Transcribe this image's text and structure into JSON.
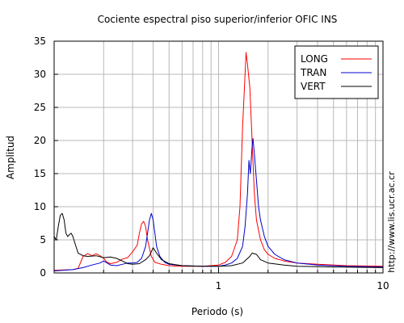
{
  "chart_data": {
    "type": "line",
    "title": "Cociente espectral piso superior/inferior  OFIC INS",
    "xlabel": "Periodo (s)",
    "ylabel": "Amplitud",
    "x_scale": "log",
    "xlim": [
      0.1,
      10
    ],
    "ylim": [
      0,
      35
    ],
    "x_tick_labels": [
      {
        "value": 1,
        "label": "1"
      },
      {
        "value": 10,
        "label": "10"
      }
    ],
    "y_ticks": [
      0,
      5,
      10,
      15,
      20,
      25,
      30,
      35
    ],
    "grid": true,
    "legend_position": "top-right",
    "side_text": "http://www.lis.ucr.ac.cr",
    "series": [
      {
        "name": "LONG",
        "color": "#ff0000",
        "points": [
          [
            0.1,
            0.4
          ],
          [
            0.13,
            0.5
          ],
          [
            0.14,
            0.7
          ],
          [
            0.15,
            2.5
          ],
          [
            0.16,
            2.9
          ],
          [
            0.17,
            2.6
          ],
          [
            0.18,
            2.9
          ],
          [
            0.19,
            2.6
          ],
          [
            0.2,
            2.2
          ],
          [
            0.21,
            1.6
          ],
          [
            0.22,
            1.4
          ],
          [
            0.24,
            1.6
          ],
          [
            0.26,
            2.1
          ],
          [
            0.28,
            2.3
          ],
          [
            0.3,
            3.2
          ],
          [
            0.32,
            4.2
          ],
          [
            0.33,
            6.0
          ],
          [
            0.34,
            7.4
          ],
          [
            0.35,
            7.8
          ],
          [
            0.36,
            7.0
          ],
          [
            0.37,
            5.0
          ],
          [
            0.39,
            2.5
          ],
          [
            0.41,
            1.6
          ],
          [
            0.45,
            1.3
          ],
          [
            0.5,
            1.1
          ],
          [
            0.6,
            1.0
          ],
          [
            0.8,
            1.0
          ],
          [
            1.0,
            1.2
          ],
          [
            1.1,
            1.6
          ],
          [
            1.2,
            2.5
          ],
          [
            1.3,
            5.0
          ],
          [
            1.35,
            10.0
          ],
          [
            1.4,
            22.0
          ],
          [
            1.45,
            30.0
          ],
          [
            1.47,
            33.3
          ],
          [
            1.5,
            31.5
          ],
          [
            1.55,
            28.0
          ],
          [
            1.6,
            20.0
          ],
          [
            1.65,
            12.0
          ],
          [
            1.7,
            8.0
          ],
          [
            1.8,
            5.0
          ],
          [
            1.9,
            3.5
          ],
          [
            2.0,
            2.8
          ],
          [
            2.2,
            2.2
          ],
          [
            2.5,
            1.8
          ],
          [
            3.0,
            1.5
          ],
          [
            4.0,
            1.3
          ],
          [
            6.0,
            1.1
          ],
          [
            10.0,
            1.0
          ]
        ]
      },
      {
        "name": "TRAN",
        "color": "#0000cc",
        "points": [
          [
            0.1,
            0.3
          ],
          [
            0.13,
            0.5
          ],
          [
            0.15,
            0.8
          ],
          [
            0.17,
            1.2
          ],
          [
            0.19,
            1.5
          ],
          [
            0.2,
            1.8
          ],
          [
            0.21,
            1.5
          ],
          [
            0.22,
            1.2
          ],
          [
            0.24,
            1.1
          ],
          [
            0.26,
            1.3
          ],
          [
            0.28,
            1.5
          ],
          [
            0.3,
            1.5
          ],
          [
            0.32,
            1.6
          ],
          [
            0.34,
            2.2
          ],
          [
            0.36,
            4.0
          ],
          [
            0.37,
            6.0
          ],
          [
            0.38,
            8.0
          ],
          [
            0.39,
            9.0
          ],
          [
            0.4,
            8.0
          ],
          [
            0.41,
            6.0
          ],
          [
            0.42,
            4.0
          ],
          [
            0.44,
            2.5
          ],
          [
            0.47,
            1.6
          ],
          [
            0.5,
            1.3
          ],
          [
            0.6,
            1.1
          ],
          [
            0.8,
            1.0
          ],
          [
            1.0,
            1.0
          ],
          [
            1.1,
            1.2
          ],
          [
            1.2,
            1.5
          ],
          [
            1.3,
            2.2
          ],
          [
            1.4,
            4.0
          ],
          [
            1.45,
            7.0
          ],
          [
            1.5,
            12.0
          ],
          [
            1.53,
            17.0
          ],
          [
            1.56,
            15.0
          ],
          [
            1.6,
            19.0
          ],
          [
            1.62,
            20.3
          ],
          [
            1.65,
            18.0
          ],
          [
            1.7,
            14.0
          ],
          [
            1.75,
            10.0
          ],
          [
            1.8,
            8.0
          ],
          [
            1.9,
            5.5
          ],
          [
            2.0,
            4.0
          ],
          [
            2.2,
            2.8
          ],
          [
            2.5,
            2.0
          ],
          [
            3.0,
            1.5
          ],
          [
            4.0,
            1.2
          ],
          [
            6.0,
            1.0
          ],
          [
            10.0,
            0.9
          ]
        ]
      },
      {
        "name": "VERT",
        "color": "#000000",
        "points": [
          [
            0.1,
            5.5
          ],
          [
            0.103,
            5.0
          ],
          [
            0.106,
            7.0
          ],
          [
            0.109,
            8.7
          ],
          [
            0.112,
            9.0
          ],
          [
            0.115,
            8.0
          ],
          [
            0.118,
            6.0
          ],
          [
            0.121,
            5.5
          ],
          [
            0.124,
            5.8
          ],
          [
            0.127,
            6.0
          ],
          [
            0.13,
            5.5
          ],
          [
            0.135,
            4.2
          ],
          [
            0.14,
            3.0
          ],
          [
            0.15,
            2.6
          ],
          [
            0.16,
            2.5
          ],
          [
            0.18,
            2.6
          ],
          [
            0.2,
            2.3
          ],
          [
            0.22,
            2.4
          ],
          [
            0.24,
            2.2
          ],
          [
            0.26,
            1.8
          ],
          [
            0.28,
            1.4
          ],
          [
            0.3,
            1.3
          ],
          [
            0.33,
            1.4
          ],
          [
            0.36,
            2.0
          ],
          [
            0.38,
            2.6
          ],
          [
            0.4,
            3.8
          ],
          [
            0.42,
            3.0
          ],
          [
            0.45,
            2.0
          ],
          [
            0.5,
            1.4
          ],
          [
            0.6,
            1.1
          ],
          [
            0.8,
            1.0
          ],
          [
            1.0,
            1.0
          ],
          [
            1.2,
            1.1
          ],
          [
            1.4,
            1.5
          ],
          [
            1.55,
            2.5
          ],
          [
            1.6,
            3.0
          ],
          [
            1.7,
            2.8
          ],
          [
            1.8,
            2.0
          ],
          [
            2.0,
            1.5
          ],
          [
            2.5,
            1.2
          ],
          [
            3.0,
            1.0
          ],
          [
            5.0,
            0.9
          ],
          [
            10.0,
            0.8
          ]
        ]
      }
    ]
  }
}
